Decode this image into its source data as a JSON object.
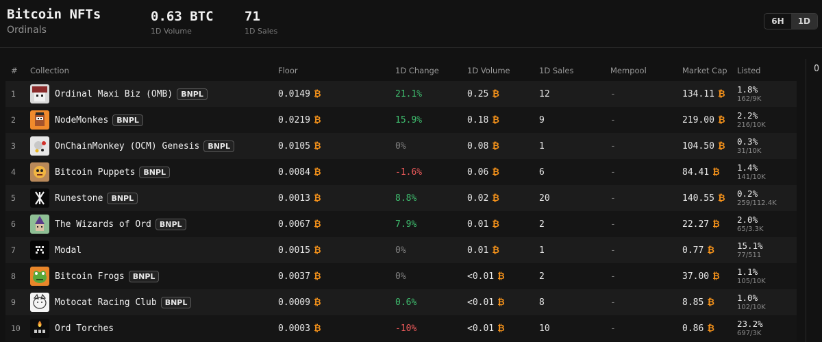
{
  "header": {
    "title": "Bitcoin NFTs",
    "subtitle": "Ordinals",
    "stats": [
      {
        "value": "0.63 BTC",
        "label": "1D Volume"
      },
      {
        "value": "71",
        "label": "1D Sales"
      }
    ],
    "timeframes": [
      "6H",
      "1D"
    ],
    "active_timeframe": "1D",
    "edge_text": "O"
  },
  "colors": {
    "btc": "#f7931a",
    "positive": "#3fbf6f",
    "negative": "#f05b5b",
    "neutral": "#808080"
  },
  "table": {
    "columns": [
      "#",
      "Collection",
      "Floor",
      "1D Change",
      "1D Volume",
      "1D Sales",
      "Mempool",
      "Market Cap",
      "Listed"
    ],
    "btc_symbol": "₿",
    "rows": [
      {
        "rank": "1",
        "name": "Ordinal Maxi Biz (OMB)",
        "badge": "BNPL",
        "icon": "omb-thumbnail",
        "floor": "0.0149",
        "change": "21.1%",
        "trend": "pos",
        "volume": "0.25",
        "sales": "12",
        "mempool": "-",
        "mcap": "134.11",
        "listed_pct": "1.8%",
        "listed_count": "162/9K"
      },
      {
        "rank": "2",
        "name": "NodeMonkes",
        "badge": "BNPL",
        "icon": "nodemonkes-thumbnail",
        "floor": "0.0219",
        "change": "15.9%",
        "trend": "pos",
        "volume": "0.18",
        "sales": "9",
        "mempool": "-",
        "mcap": "219.00",
        "listed_pct": "2.2%",
        "listed_count": "216/10K"
      },
      {
        "rank": "3",
        "name": "OnChainMonkey (OCM) Genesis",
        "badge": "BNPL",
        "icon": "ocm-thumbnail",
        "floor": "0.0105",
        "change": "0%",
        "trend": "neu",
        "volume": "0.08",
        "sales": "1",
        "mempool": "-",
        "mcap": "104.50",
        "listed_pct": "0.3%",
        "listed_count": "31/10K"
      },
      {
        "rank": "4",
        "name": "Bitcoin Puppets",
        "badge": "BNPL",
        "icon": "puppets-thumbnail",
        "floor": "0.0084",
        "change": "-1.6%",
        "trend": "neg",
        "volume": "0.06",
        "sales": "6",
        "mempool": "-",
        "mcap": "84.41",
        "listed_pct": "1.4%",
        "listed_count": "141/10K"
      },
      {
        "rank": "5",
        "name": "Runestone",
        "badge": "BNPL",
        "icon": "runestone-thumbnail",
        "floor": "0.0013",
        "change": "8.8%",
        "trend": "pos",
        "volume": "0.02",
        "sales": "20",
        "mempool": "-",
        "mcap": "140.55",
        "listed_pct": "0.2%",
        "listed_count": "259/112.4K"
      },
      {
        "rank": "6",
        "name": "The Wizards of Ord",
        "badge": "BNPL",
        "icon": "wizards-thumbnail",
        "floor": "0.0067",
        "change": "7.9%",
        "trend": "pos",
        "volume": "0.01",
        "sales": "2",
        "mempool": "-",
        "mcap": "22.27",
        "listed_pct": "2.0%",
        "listed_count": "65/3.3K"
      },
      {
        "rank": "7",
        "name": "Modal",
        "badge": "",
        "icon": "modal-thumbnail",
        "floor": "0.0015",
        "change": "0%",
        "trend": "neu",
        "volume": "0.01",
        "sales": "1",
        "mempool": "-",
        "mcap": "0.77",
        "listed_pct": "15.1%",
        "listed_count": "77/511"
      },
      {
        "rank": "8",
        "name": "Bitcoin Frogs",
        "badge": "BNPL",
        "icon": "frogs-thumbnail",
        "floor": "0.0037",
        "change": "0%",
        "trend": "neu",
        "volume": "<0.01",
        "sales": "2",
        "mempool": "-",
        "mcap": "37.00",
        "listed_pct": "1.1%",
        "listed_count": "105/10K"
      },
      {
        "rank": "9",
        "name": "Motocat Racing Club",
        "badge": "BNPL",
        "icon": "motocat-thumbnail",
        "floor": "0.0009",
        "change": "0.6%",
        "trend": "pos",
        "volume": "<0.01",
        "sales": "8",
        "mempool": "-",
        "mcap": "8.85",
        "listed_pct": "1.0%",
        "listed_count": "102/10K"
      },
      {
        "rank": "10",
        "name": "Ord Torches",
        "badge": "",
        "icon": "torches-thumbnail",
        "floor": "0.0003",
        "change": "-10%",
        "trend": "neg",
        "volume": "<0.01",
        "sales": "10",
        "mempool": "-",
        "mcap": "0.86",
        "listed_pct": "23.2%",
        "listed_count": "697/3K"
      }
    ]
  }
}
